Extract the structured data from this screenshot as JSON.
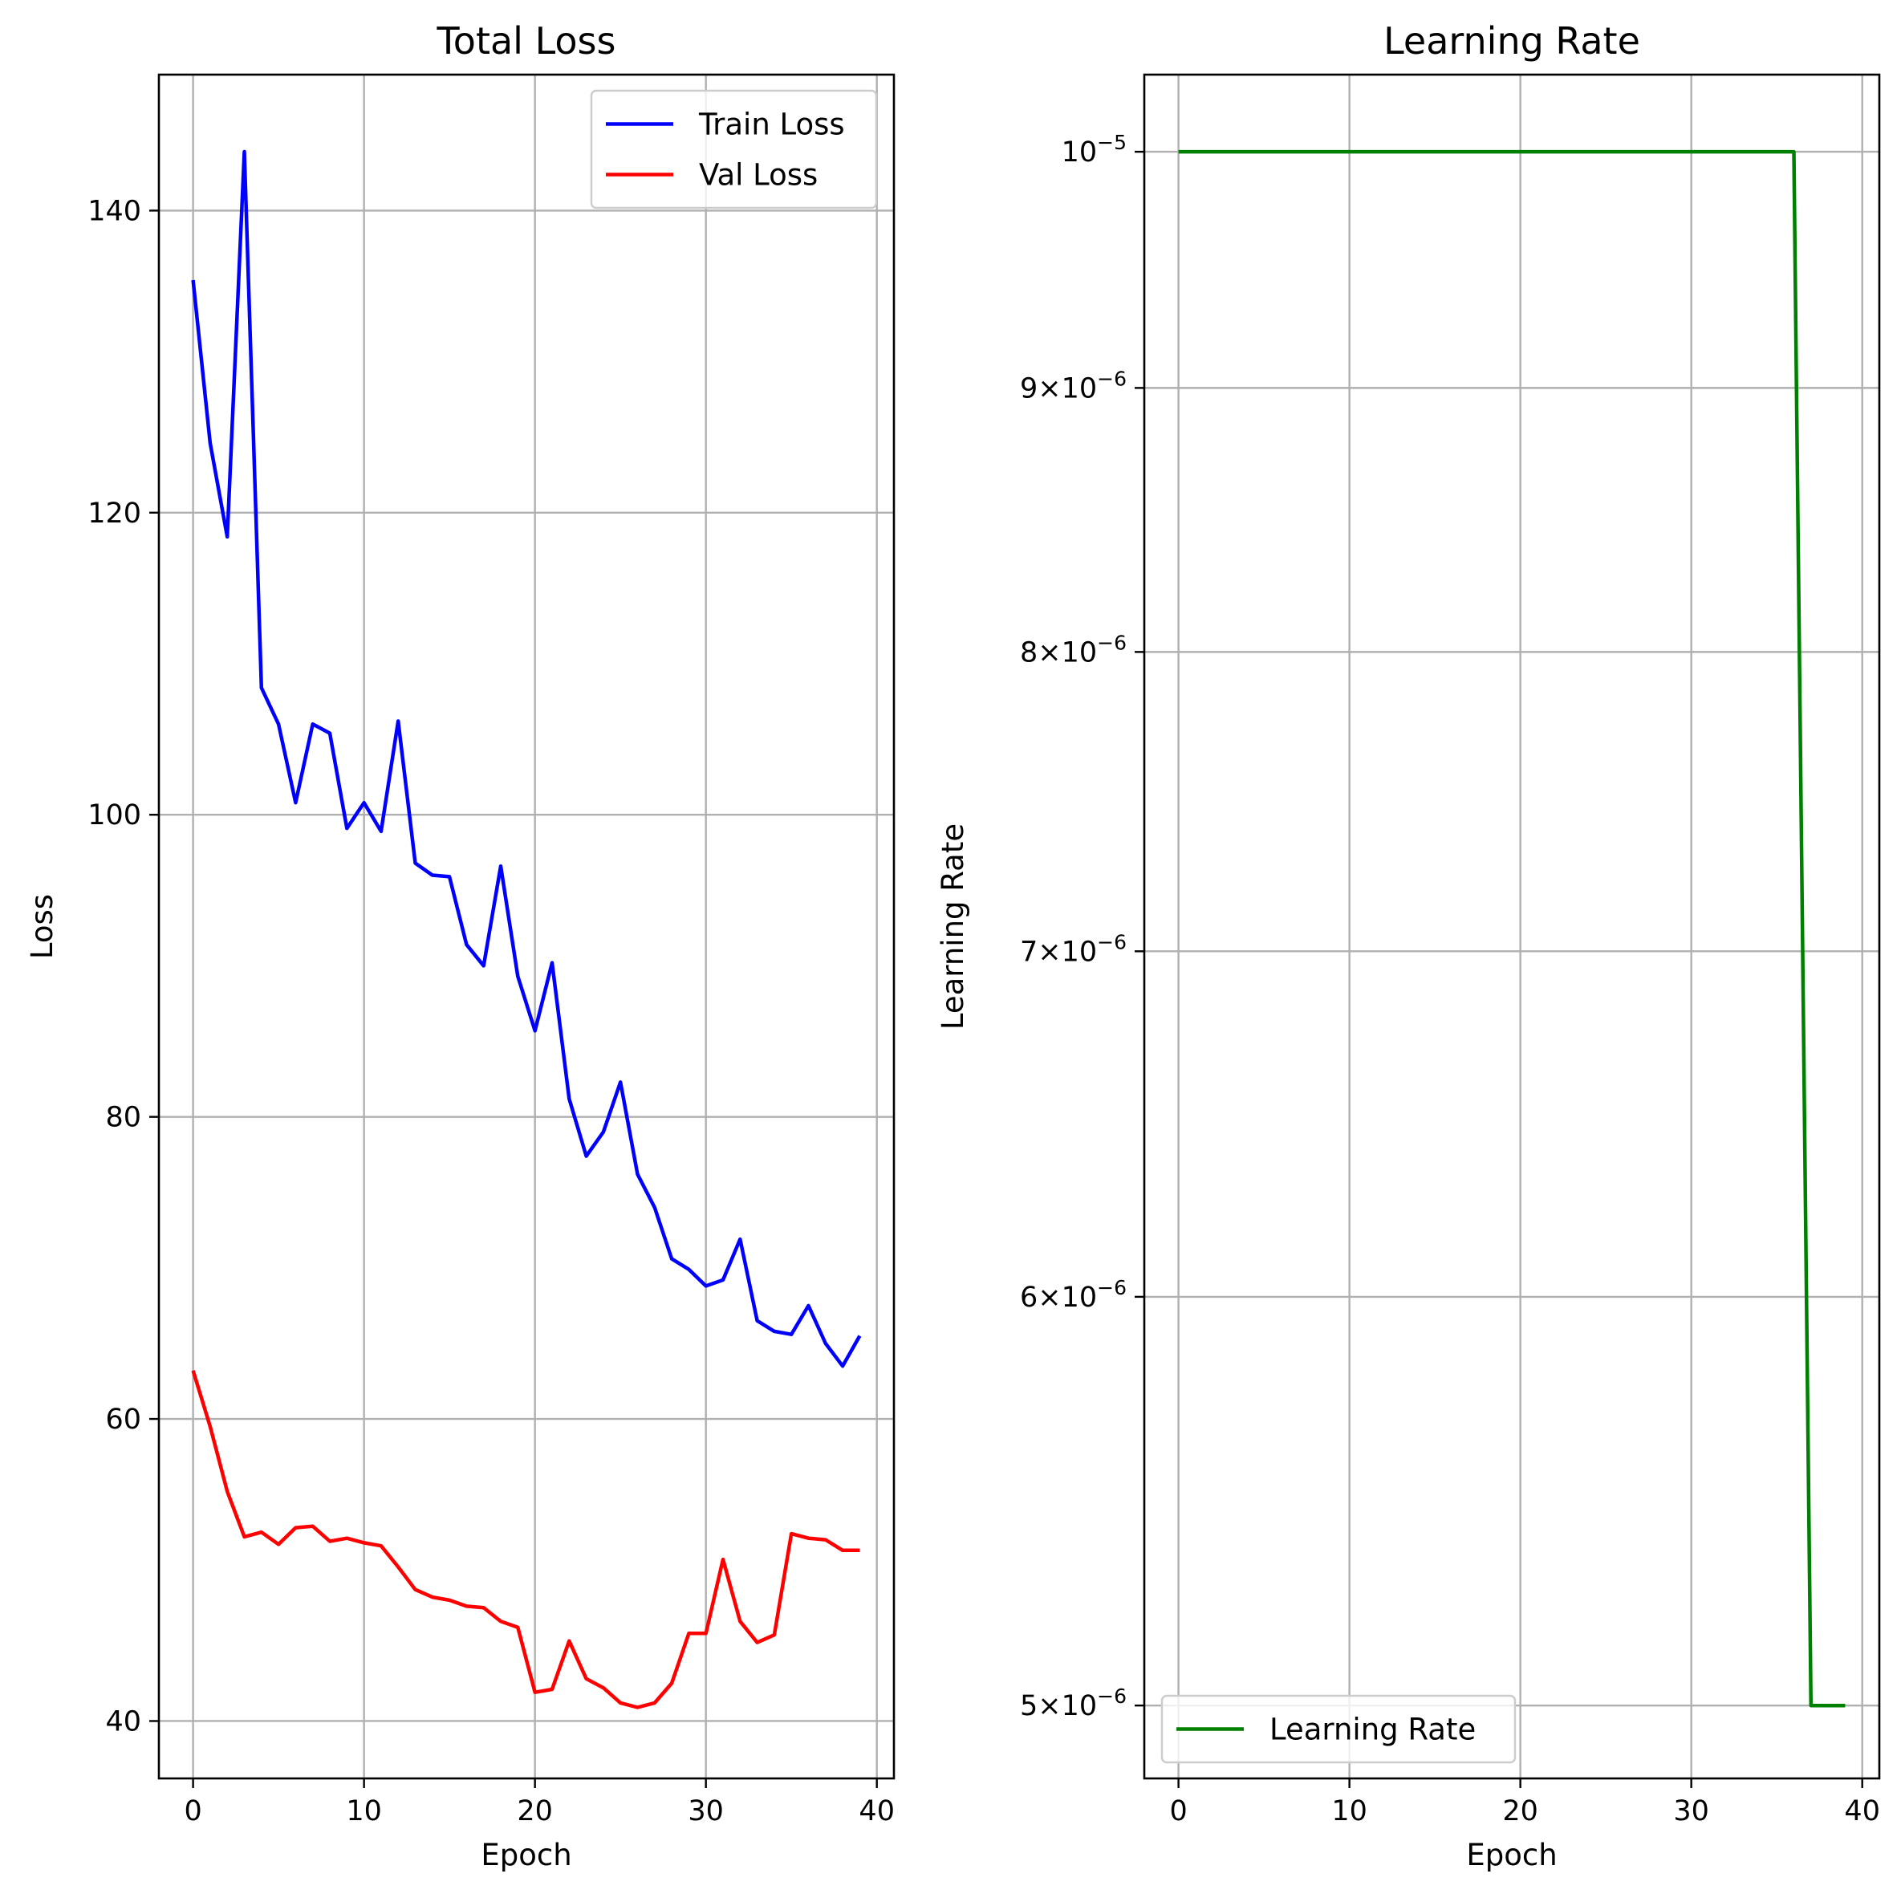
{
  "chart_data": [
    {
      "type": "line",
      "title": "Total Loss",
      "xlabel": "Epoch",
      "ylabel": "Loss",
      "xlim": [
        -2,
        41
      ],
      "ylim": [
        36.2,
        149.0
      ],
      "xticks": [
        0,
        10,
        20,
        30,
        40
      ],
      "xtick_labels": [
        "0",
        "10",
        "20",
        "30",
        "40"
      ],
      "yticks": [
        40,
        60,
        80,
        100,
        120,
        140
      ],
      "ytick_labels": [
        "40",
        "60",
        "80",
        "100",
        "120",
        "140"
      ],
      "grid": true,
      "legend_position": "top-right",
      "x": [
        0,
        1,
        2,
        3,
        4,
        5,
        6,
        7,
        8,
        9,
        10,
        11,
        12,
        13,
        14,
        15,
        16,
        17,
        18,
        19,
        20,
        21,
        22,
        23,
        24,
        25,
        26,
        27,
        28,
        29,
        30,
        31,
        32,
        33,
        34,
        35,
        36,
        37,
        38,
        39
      ],
      "series": [
        {
          "name": "Train Loss",
          "color": "#0000ff",
          "values": [
            135.4,
            124.6,
            118.4,
            143.9,
            108.4,
            106.0,
            100.8,
            106.0,
            105.4,
            99.1,
            100.8,
            98.9,
            106.2,
            96.8,
            96.0,
            95.9,
            91.4,
            90.0,
            96.6,
            89.3,
            85.7,
            90.2,
            81.2,
            77.4,
            79.0,
            82.3,
            76.2,
            74.0,
            70.6,
            69.9,
            68.8,
            69.2,
            71.9,
            66.5,
            65.8,
            65.6,
            67.5,
            65.0,
            63.5,
            65.5
          ]
        },
        {
          "name": "Val Loss",
          "color": "#ff0000",
          "values": [
            63.2,
            59.5,
            55.2,
            52.2,
            52.5,
            51.7,
            52.8,
            52.9,
            51.9,
            52.1,
            51.8,
            51.6,
            50.2,
            48.7,
            48.2,
            48.0,
            47.6,
            47.5,
            46.6,
            46.2,
            41.9,
            42.1,
            45.3,
            42.8,
            42.2,
            41.2,
            40.9,
            41.2,
            42.5,
            45.8,
            45.8,
            50.7,
            46.6,
            45.2,
            45.7,
            52.4,
            52.1,
            52.0,
            51.3,
            51.3
          ]
        }
      ]
    },
    {
      "type": "line",
      "title": "Learning Rate",
      "xlabel": "Epoch",
      "ylabel": "Learning Rate",
      "yscale": "log",
      "xlim": [
        -2,
        41
      ],
      "ylim": [
        4.84e-06,
        1.035e-05
      ],
      "xticks": [
        0,
        10,
        20,
        30,
        40
      ],
      "xtick_labels": [
        "0",
        "10",
        "20",
        "30",
        "40"
      ],
      "yticks": [
        5e-06,
        6e-06,
        7e-06,
        8e-06,
        9e-06,
        1e-05
      ],
      "ytick_labels": [
        {
          "mantissa": "5",
          "exponent": "−6"
        },
        {
          "mantissa": "6",
          "exponent": "−6"
        },
        {
          "mantissa": "7",
          "exponent": "−6"
        },
        {
          "mantissa": "8",
          "exponent": "−6"
        },
        {
          "mantissa": "9",
          "exponent": "−6"
        },
        {
          "mantissa": "",
          "exponent": "−5"
        }
      ],
      "tick_base": "10",
      "times_sign": "×",
      "grid": true,
      "legend_position": "bottom-left",
      "x": [
        0,
        1,
        2,
        3,
        4,
        5,
        6,
        7,
        8,
        9,
        10,
        11,
        12,
        13,
        14,
        15,
        16,
        17,
        18,
        19,
        20,
        21,
        22,
        23,
        24,
        25,
        26,
        27,
        28,
        29,
        30,
        31,
        32,
        33,
        34,
        35,
        36,
        37,
        38,
        39
      ],
      "series": [
        {
          "name": "Learning Rate",
          "color": "#008000",
          "values": [
            1e-05,
            1e-05,
            1e-05,
            1e-05,
            1e-05,
            1e-05,
            1e-05,
            1e-05,
            1e-05,
            1e-05,
            1e-05,
            1e-05,
            1e-05,
            1e-05,
            1e-05,
            1e-05,
            1e-05,
            1e-05,
            1e-05,
            1e-05,
            1e-05,
            1e-05,
            1e-05,
            1e-05,
            1e-05,
            1e-05,
            1e-05,
            1e-05,
            1e-05,
            1e-05,
            1e-05,
            1e-05,
            1e-05,
            1e-05,
            1e-05,
            1e-05,
            1e-05,
            5e-06,
            5e-06,
            5e-06
          ]
        }
      ]
    }
  ]
}
